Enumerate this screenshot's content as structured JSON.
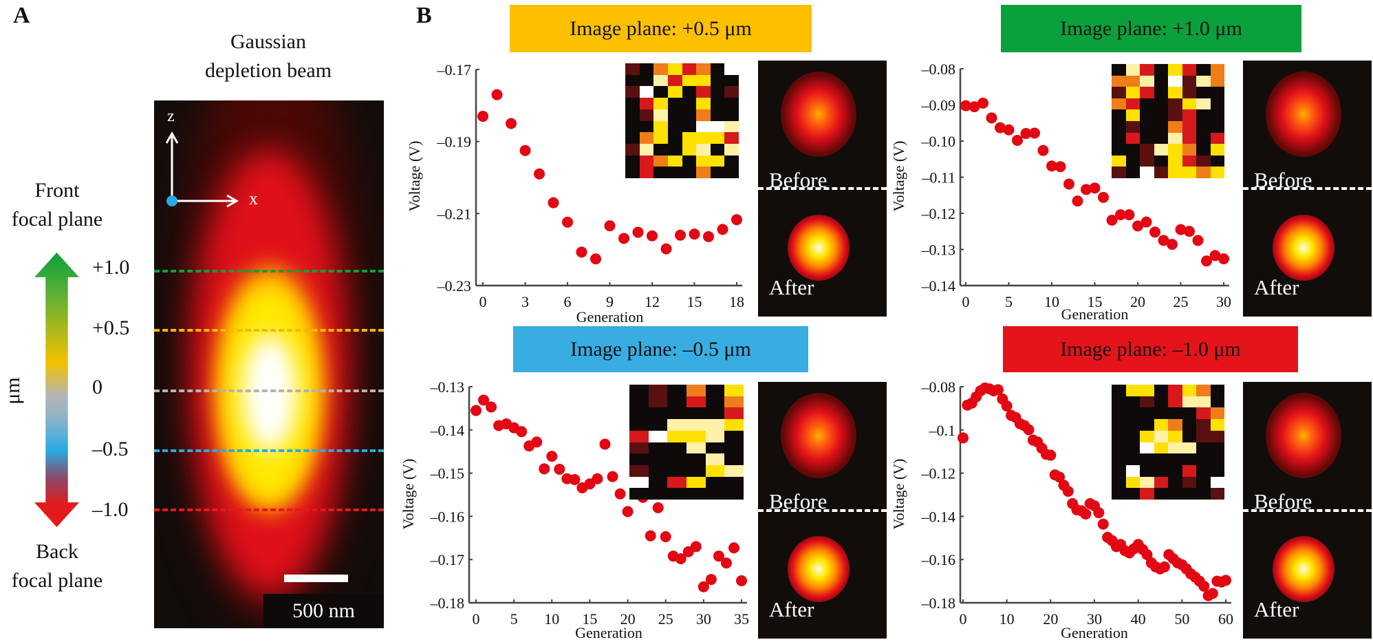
{
  "panel_a": {
    "label": "A",
    "title_line1": "Gaussian",
    "title_line2": "depletion beam",
    "front_line1": "Front",
    "front_line2": "focal plane",
    "back_line1": "Back",
    "back_line2": "focal plane",
    "unit": "μm",
    "axis_z": "z",
    "axis_x": "x",
    "scale_bar": "500 nm",
    "planes": [
      {
        "label": "+1.0",
        "color": "#0aa03c"
      },
      {
        "label": "+0.5",
        "color": "#f5b800"
      },
      {
        "label": "0",
        "color": "#b4b4b4"
      },
      {
        "label": "–0.5",
        "color": "#29abe2"
      },
      {
        "label": "–1.0",
        "color": "#e31a1c"
      }
    ]
  },
  "panel_b": {
    "label": "B"
  },
  "chart_data": [
    {
      "type": "scatter",
      "title": "Image plane: +0.5 μm",
      "header_color": "#fcc000",
      "xlabel": "Generation",
      "ylabel": "Voltage (V)",
      "xlim": [
        0,
        18
      ],
      "ylim": [
        -0.23,
        -0.17
      ],
      "xticks": [
        0,
        3,
        6,
        9,
        12,
        15,
        18
      ],
      "xtick_labels": [
        "0",
        "3",
        "6",
        "9",
        "12",
        "15",
        "18"
      ],
      "yticks": [
        -0.17,
        -0.19,
        -0.21,
        -0.23
      ],
      "ytick_labels": [
        "–0.17",
        "–0.19",
        "–0.21",
        "–0.23"
      ],
      "x": [
        0,
        1,
        2,
        3,
        4,
        5,
        6,
        7,
        8,
        9,
        10,
        11,
        12,
        13,
        14,
        15,
        16,
        17,
        18
      ],
      "y": [
        -0.183,
        -0.177,
        -0.185,
        -0.1925,
        -0.199,
        -0.207,
        -0.2124,
        -0.2207,
        -0.2226,
        -0.2134,
        -0.2169,
        -0.2152,
        -0.2162,
        -0.2198,
        -0.216,
        -0.2157,
        -0.2164,
        -0.2144,
        -0.2117
      ],
      "point_color": "#e30613",
      "before_label": "Before",
      "after_label": "After",
      "inset_pattern": [
        "dkoyrokw",
        "kkpryykk",
        "dwkykrkd",
        "krykkykk",
        "kdpkkokk",
        "kkykkwwp",
        "koykyyyr",
        "dpkkypkp",
        "kroykyyk",
        "krkkkokk"
      ]
    },
    {
      "type": "scatter",
      "title": "Image plane: +1.0 μm",
      "header_color": "#0aa03c",
      "xlabel": "Generation",
      "ylabel": "Voltage (V)",
      "xlim": [
        0,
        30
      ],
      "ylim": [
        -0.14,
        -0.08
      ],
      "xticks": [
        0,
        5,
        10,
        15,
        20,
        25,
        30
      ],
      "xtick_labels": [
        "0",
        "5",
        "10",
        "15",
        "20",
        "25",
        "30"
      ],
      "yticks": [
        -0.08,
        -0.09,
        -0.1,
        -0.11,
        -0.12,
        -0.13,
        -0.14
      ],
      "ytick_labels": [
        "–0.08",
        "–0.09",
        "–0.10",
        "–0.11",
        "–0.12",
        "–0.13",
        "–0.14"
      ],
      "x": [
        0,
        1,
        2,
        3,
        4,
        5,
        6,
        7,
        8,
        9,
        10,
        11,
        12,
        13,
        14,
        15,
        16,
        17,
        18,
        19,
        20,
        21,
        22,
        23,
        24,
        25,
        26,
        27,
        28,
        29,
        30
      ],
      "y": [
        -0.0902,
        -0.0905,
        -0.0895,
        -0.0936,
        -0.0963,
        -0.0969,
        -0.0998,
        -0.0979,
        -0.0978,
        -0.1026,
        -0.1069,
        -0.1071,
        -0.1119,
        -0.1166,
        -0.1134,
        -0.113,
        -0.1156,
        -0.1219,
        -0.1204,
        -0.1204,
        -0.1235,
        -0.1224,
        -0.1252,
        -0.1275,
        -0.1286,
        -0.1245,
        -0.125,
        -0.1275,
        -0.1332,
        -0.1317,
        -0.1326
      ],
      "point_color": "#e30613",
      "before_label": "Before",
      "after_label": "After",
      "inset_pattern": [
        "kprkyrko",
        "oopkwdpo",
        "dyrkydkk",
        "orkkdypk",
        "kykkdrkk",
        "kdkkorkk",
        "krkkprkr",
        "kkdpyoky",
        "ykdkyrdk",
        "dkwdyyoy"
      ]
    },
    {
      "type": "scatter",
      "title": "Image plane: –0.5 μm",
      "header_color": "#38ade2",
      "xlabel": "Generation",
      "ylabel": "Voltage (V)",
      "xlim": [
        0,
        35
      ],
      "ylim": [
        -0.18,
        -0.13
      ],
      "xticks": [
        0,
        5,
        10,
        15,
        20,
        25,
        30,
        35
      ],
      "xtick_labels": [
        "0",
        "5",
        "10",
        "15",
        "20",
        "25",
        "30",
        "35"
      ],
      "yticks": [
        -0.13,
        -0.14,
        -0.15,
        -0.16,
        -0.17,
        -0.18
      ],
      "ytick_labels": [
        "–0.13",
        "–0.14",
        "–0.15",
        "–0.16",
        "–0.17",
        "–0.18"
      ],
      "x": [
        0,
        1,
        2,
        3,
        4,
        5,
        6,
        7,
        8,
        9,
        10,
        11,
        12,
        13,
        14,
        15,
        16,
        17,
        18,
        19,
        20,
        21,
        22,
        23,
        24,
        25,
        26,
        27,
        28,
        29,
        30,
        31,
        32,
        33,
        34,
        35
      ],
      "y": [
        -0.1355,
        -0.1331,
        -0.1347,
        -0.139,
        -0.1386,
        -0.1395,
        -0.1404,
        -0.1437,
        -0.1428,
        -0.149,
        -0.1461,
        -0.1491,
        -0.1513,
        -0.1515,
        -0.1534,
        -0.1525,
        -0.1513,
        -0.1433,
        -0.1508,
        -0.1548,
        -0.1589,
        -0.153,
        -0.1556,
        -0.1645,
        -0.158,
        -0.1647,
        -0.1692,
        -0.1698,
        -0.1682,
        -0.167,
        -0.1763,
        -0.1746,
        -0.1692,
        -0.1708,
        -0.1673,
        -0.1749
      ],
      "point_color": "#e30613",
      "before_label": "Before",
      "after_label": "After",
      "inset_pattern": [
        "kdkoky",
        "kdkrko",
        "kkkkkr",
        "kkpppy",
        "rwyypk",
        "dkkpkk",
        "kkkkpk",
        "dkkkyp",
        "wkryk",
        "kkkkkk"
      ]
    },
    {
      "type": "scatter",
      "title": "Image plane: –1.0 μm",
      "header_color": "#e5141b",
      "xlabel": "Generation",
      "ylabel": "Voltage (V)",
      "xlim": [
        0,
        60
      ],
      "ylim": [
        -0.18,
        -0.08
      ],
      "xticks": [
        0,
        10,
        20,
        30,
        40,
        50,
        60
      ],
      "xtick_labels": [
        "0",
        "10",
        "20",
        "30",
        "40",
        "50",
        "60"
      ],
      "yticks": [
        -0.08,
        -0.1,
        -0.12,
        -0.14,
        -0.16,
        -0.18
      ],
      "ytick_labels": [
        "–0.08",
        "–0.1",
        "–0.12",
        "–0.14",
        "–0.16",
        "–0.18"
      ],
      "x": [
        0,
        1,
        2,
        3,
        4,
        5,
        6,
        7,
        8,
        9,
        10,
        11,
        12,
        13,
        14,
        15,
        16,
        17,
        18,
        19,
        20,
        21,
        22,
        23,
        24,
        25,
        26,
        27,
        28,
        29,
        30,
        31,
        32,
        33,
        34,
        35,
        36,
        37,
        38,
        39,
        40,
        41,
        42,
        43,
        44,
        45,
        46,
        47,
        48,
        49,
        50,
        51,
        52,
        53,
        54,
        55,
        56,
        57,
        58,
        59,
        60
      ],
      "y": [
        -0.1037,
        -0.0885,
        -0.0876,
        -0.0847,
        -0.0819,
        -0.0806,
        -0.081,
        -0.0819,
        -0.0814,
        -0.0857,
        -0.0889,
        -0.0933,
        -0.0942,
        -0.0971,
        -0.098,
        -0.0999,
        -0.1047,
        -0.1056,
        -0.1085,
        -0.1113,
        -0.1117,
        -0.1208,
        -0.1218,
        -0.1256,
        -0.1284,
        -0.1341,
        -0.137,
        -0.1374,
        -0.1389,
        -0.1341,
        -0.1351,
        -0.1383,
        -0.1436,
        -0.1497,
        -0.1512,
        -0.154,
        -0.153,
        -0.1559,
        -0.1569,
        -0.155,
        -0.153,
        -0.1553,
        -0.1577,
        -0.1615,
        -0.1634,
        -0.1643,
        -0.1634,
        -0.1577,
        -0.1596,
        -0.1615,
        -0.1624,
        -0.1643,
        -0.1666,
        -0.1681,
        -0.17,
        -0.1723,
        -0.1767,
        -0.1757,
        -0.17,
        -0.1704,
        -0.1696
      ],
      "point_color": "#e30613",
      "before_label": "Before",
      "after_label": "After",
      "inset_pattern": [
        "kyykryok",
        "kkdkrppk",
        "kkkkkkro",
        "kkkyokdy",
        "kkypykdd",
        "kkwyppkk",
        "kkkkkkkk",
        "kwkkkrkk",
        "kyprkdkw",
        "kkrkkkkd"
      ]
    }
  ]
}
